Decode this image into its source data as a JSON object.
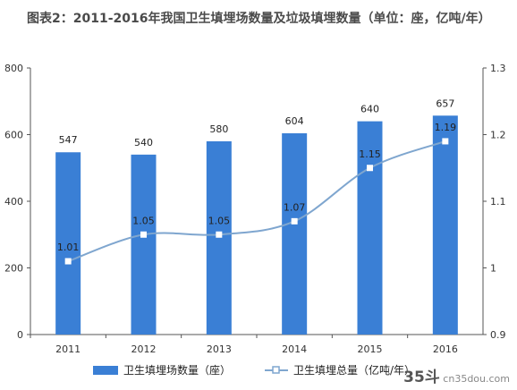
{
  "title": "图表2：2011-2016年我国卫生填埋场数量及垃圾填埋数量（单位：座，亿吨/年）",
  "watermark": {
    "brand": "35斗",
    "site": "cn35dou.com"
  },
  "chart_data": {
    "type": "bar",
    "categories": [
      "2011",
      "2012",
      "2013",
      "2014",
      "2015",
      "2016"
    ],
    "series": [
      {
        "name": "卫生填埋场数量（座）",
        "type": "bar",
        "axis": "left",
        "values": [
          547,
          540,
          580,
          604,
          640,
          657
        ],
        "labels": [
          "547",
          "540",
          "580",
          "604",
          "640",
          "657"
        ],
        "color": "#3a7fd5"
      },
      {
        "name": "卫生填埋总量（亿吨/年）",
        "type": "line",
        "axis": "right",
        "values": [
          1.01,
          1.05,
          1.05,
          1.07,
          1.15,
          1.19
        ],
        "labels": [
          "1.01",
          "1.05",
          "1.05",
          "1.07",
          "1.15",
          "1.19"
        ],
        "color": "#7fa6cf"
      }
    ],
    "y_left": {
      "min": 0,
      "max": 800,
      "ticks": [
        "0",
        "200",
        "400",
        "600",
        "800"
      ]
    },
    "y_right": {
      "min": 0.9,
      "max": 1.3,
      "ticks": [
        "0.9",
        "1",
        "1.1",
        "1.2",
        "1.3"
      ]
    },
    "grid": false,
    "legend": "bottom"
  }
}
